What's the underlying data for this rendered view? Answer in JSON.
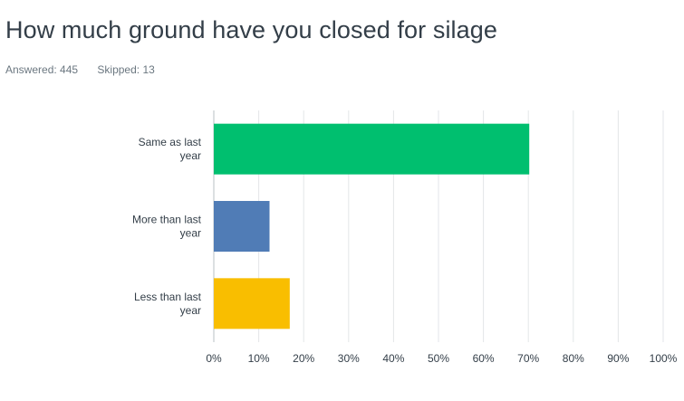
{
  "question": {
    "title": "How much ground have you closed for silage",
    "answered": "Answered: 445",
    "skipped": "Skipped: 13"
  },
  "chart_data": {
    "type": "bar",
    "orientation": "horizontal",
    "categories": [
      [
        "Same as last",
        "year"
      ],
      [
        "More than last",
        "year"
      ],
      [
        "Less than last",
        "year"
      ]
    ],
    "values": [
      70.2,
      12.4,
      16.9
    ],
    "colors": [
      "#00bf6f",
      "#507cb6",
      "#f9be00"
    ],
    "xlim": [
      0,
      100
    ],
    "xticks": [
      "0%",
      "10%",
      "20%",
      "30%",
      "40%",
      "50%",
      "60%",
      "70%",
      "80%",
      "90%",
      "100%"
    ],
    "grid": true
  }
}
